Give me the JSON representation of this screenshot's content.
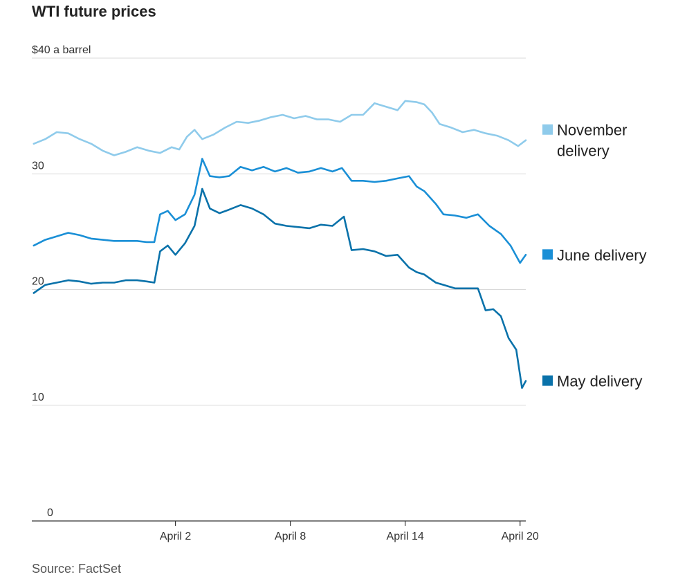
{
  "chart_data": {
    "type": "line",
    "title": "WTI future prices",
    "ylabel": "$40 a barrel",
    "ylim": [
      0,
      40
    ],
    "yticks": [
      {
        "value": 40,
        "label": "$40 a barrel"
      },
      {
        "value": 30,
        "label": "30"
      },
      {
        "value": 20,
        "label": "20"
      },
      {
        "value": 10,
        "label": "10"
      },
      {
        "value": 0,
        "label": "0"
      }
    ],
    "xlim": [
      -5.5,
      20.3
    ],
    "xticks": [
      {
        "value": 2,
        "label": "April 2"
      },
      {
        "value": 8,
        "label": "April 8"
      },
      {
        "value": 14,
        "label": "April 14"
      },
      {
        "value": 20,
        "label": "April 20"
      }
    ],
    "series": [
      {
        "name": "November delivery",
        "legend": [
          "November",
          "delivery"
        ],
        "color": "#8fcbeb",
        "points": [
          [
            -5.4,
            32.6
          ],
          [
            -4.8,
            33.0
          ],
          [
            -4.2,
            33.6
          ],
          [
            -3.6,
            33.5
          ],
          [
            -3.0,
            33.0
          ],
          [
            -2.4,
            32.6
          ],
          [
            -1.8,
            32.0
          ],
          [
            -1.2,
            31.6
          ],
          [
            -0.6,
            31.9
          ],
          [
            0.0,
            32.3
          ],
          [
            0.6,
            32.0
          ],
          [
            1.2,
            31.8
          ],
          [
            1.8,
            32.3
          ],
          [
            2.2,
            32.1
          ],
          [
            2.6,
            33.2
          ],
          [
            3.0,
            33.8
          ],
          [
            3.4,
            33.0
          ],
          [
            4.0,
            33.4
          ],
          [
            4.6,
            34.0
          ],
          [
            5.2,
            34.5
          ],
          [
            5.8,
            34.4
          ],
          [
            6.4,
            34.6
          ],
          [
            7.0,
            34.9
          ],
          [
            7.6,
            35.1
          ],
          [
            8.2,
            34.8
          ],
          [
            8.8,
            35.0
          ],
          [
            9.4,
            34.7
          ],
          [
            10.0,
            34.7
          ],
          [
            10.6,
            34.5
          ],
          [
            11.2,
            35.1
          ],
          [
            11.8,
            35.1
          ],
          [
            12.4,
            36.1
          ],
          [
            13.0,
            35.8
          ],
          [
            13.6,
            35.5
          ],
          [
            14.0,
            36.3
          ],
          [
            14.6,
            36.2
          ],
          [
            15.0,
            36.0
          ],
          [
            15.4,
            35.3
          ],
          [
            15.8,
            34.3
          ],
          [
            16.4,
            34.0
          ],
          [
            17.0,
            33.6
          ],
          [
            17.6,
            33.8
          ],
          [
            18.2,
            33.5
          ],
          [
            18.8,
            33.3
          ],
          [
            19.4,
            32.9
          ],
          [
            19.9,
            32.4
          ],
          [
            20.3,
            32.9
          ]
        ]
      },
      {
        "name": "June delivery",
        "legend": [
          "June delivery"
        ],
        "color": "#1a8fd6",
        "points": [
          [
            -5.4,
            23.8
          ],
          [
            -4.8,
            24.3
          ],
          [
            -4.2,
            24.6
          ],
          [
            -3.6,
            24.9
          ],
          [
            -3.0,
            24.7
          ],
          [
            -2.4,
            24.4
          ],
          [
            -1.8,
            24.3
          ],
          [
            -1.2,
            24.2
          ],
          [
            -0.6,
            24.2
          ],
          [
            0.0,
            24.2
          ],
          [
            0.5,
            24.1
          ],
          [
            0.9,
            24.1
          ],
          [
            1.2,
            26.5
          ],
          [
            1.6,
            26.8
          ],
          [
            2.0,
            26.0
          ],
          [
            2.5,
            26.5
          ],
          [
            3.0,
            28.2
          ],
          [
            3.4,
            31.3
          ],
          [
            3.8,
            29.8
          ],
          [
            4.3,
            29.7
          ],
          [
            4.8,
            29.8
          ],
          [
            5.4,
            30.6
          ],
          [
            6.0,
            30.3
          ],
          [
            6.6,
            30.6
          ],
          [
            7.2,
            30.2
          ],
          [
            7.8,
            30.5
          ],
          [
            8.4,
            30.1
          ],
          [
            9.0,
            30.2
          ],
          [
            9.6,
            30.5
          ],
          [
            10.2,
            30.2
          ],
          [
            10.7,
            30.5
          ],
          [
            11.2,
            29.4
          ],
          [
            11.8,
            29.4
          ],
          [
            12.4,
            29.3
          ],
          [
            13.0,
            29.4
          ],
          [
            13.6,
            29.6
          ],
          [
            14.2,
            29.8
          ],
          [
            14.6,
            28.9
          ],
          [
            15.0,
            28.5
          ],
          [
            15.6,
            27.4
          ],
          [
            16.0,
            26.5
          ],
          [
            16.6,
            26.4
          ],
          [
            17.2,
            26.2
          ],
          [
            17.8,
            26.5
          ],
          [
            18.4,
            25.5
          ],
          [
            19.0,
            24.8
          ],
          [
            19.5,
            23.8
          ],
          [
            20.0,
            22.3
          ],
          [
            20.3,
            23.0
          ]
        ]
      },
      {
        "name": "May delivery",
        "legend": [
          "May delivery"
        ],
        "color": "#0a72aa",
        "points": [
          [
            -5.4,
            19.7
          ],
          [
            -4.8,
            20.4
          ],
          [
            -4.2,
            20.6
          ],
          [
            -3.6,
            20.8
          ],
          [
            -3.0,
            20.7
          ],
          [
            -2.4,
            20.5
          ],
          [
            -1.8,
            20.6
          ],
          [
            -1.2,
            20.6
          ],
          [
            -0.6,
            20.8
          ],
          [
            0.0,
            20.8
          ],
          [
            0.5,
            20.7
          ],
          [
            0.9,
            20.6
          ],
          [
            1.2,
            23.3
          ],
          [
            1.6,
            23.8
          ],
          [
            2.0,
            23.0
          ],
          [
            2.5,
            24.0
          ],
          [
            3.0,
            25.5
          ],
          [
            3.4,
            28.7
          ],
          [
            3.8,
            27.0
          ],
          [
            4.3,
            26.6
          ],
          [
            4.8,
            26.9
          ],
          [
            5.4,
            27.3
          ],
          [
            6.0,
            27.0
          ],
          [
            6.6,
            26.5
          ],
          [
            7.2,
            25.7
          ],
          [
            7.8,
            25.5
          ],
          [
            8.4,
            25.4
          ],
          [
            9.0,
            25.3
          ],
          [
            9.6,
            25.6
          ],
          [
            10.2,
            25.5
          ],
          [
            10.8,
            26.3
          ],
          [
            11.2,
            23.4
          ],
          [
            11.8,
            23.5
          ],
          [
            12.4,
            23.3
          ],
          [
            13.0,
            22.9
          ],
          [
            13.6,
            23.0
          ],
          [
            14.2,
            21.9
          ],
          [
            14.6,
            21.5
          ],
          [
            15.0,
            21.3
          ],
          [
            15.6,
            20.6
          ],
          [
            16.0,
            20.4
          ],
          [
            16.6,
            20.1
          ],
          [
            17.2,
            20.1
          ],
          [
            17.8,
            20.1
          ],
          [
            18.2,
            18.2
          ],
          [
            18.6,
            18.3
          ],
          [
            19.0,
            17.7
          ],
          [
            19.4,
            15.8
          ],
          [
            19.8,
            14.8
          ],
          [
            20.1,
            11.5
          ],
          [
            20.3,
            12.1
          ]
        ]
      }
    ],
    "source": "Source: FactSet"
  }
}
